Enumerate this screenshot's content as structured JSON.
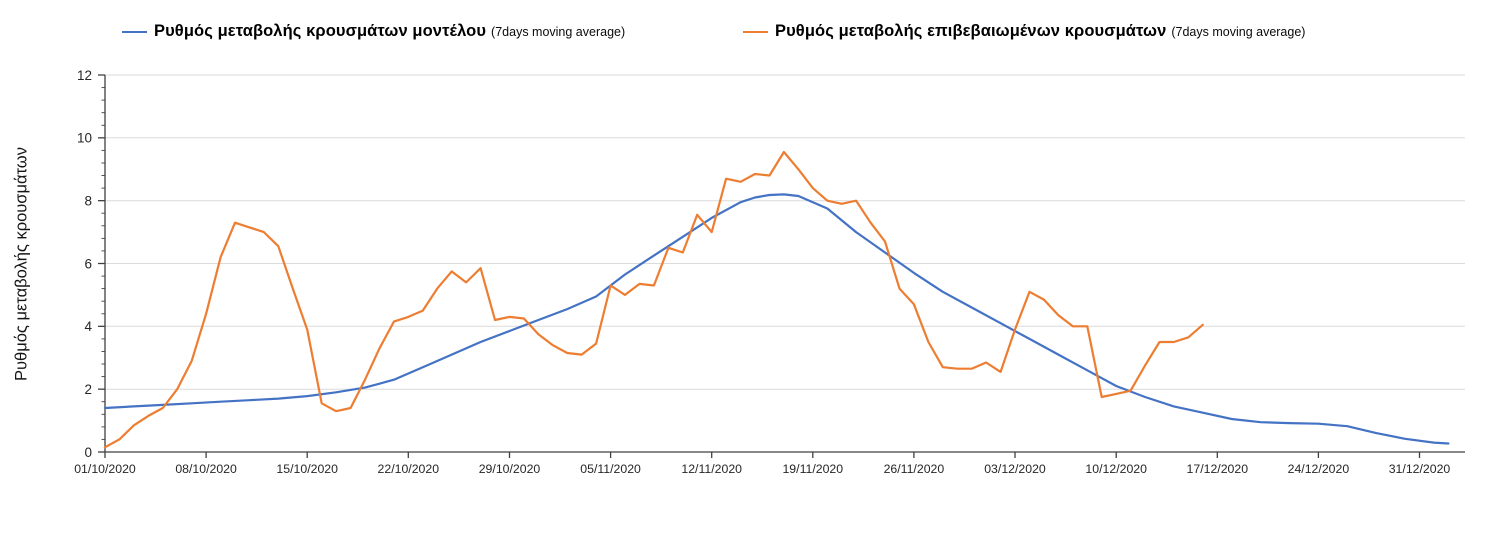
{
  "legend": {
    "items": [
      {
        "label": "Ρυθμός μεταβολής κρουσμάτων μοντέλου",
        "sub": "(7days moving average)",
        "series_key": "model"
      },
      {
        "label": "Ρυθμός μεταβολής επιβεβαιωμένων κρουσμάτων",
        "sub": "(7days moving average)",
        "series_key": "confirmed"
      }
    ]
  },
  "y_axis": {
    "title": "Ρυθμός μεταβολής κρουσμάτων",
    "tick_labels": [
      "0",
      "2",
      "4",
      "6",
      "8",
      "10",
      "12"
    ]
  },
  "colors": {
    "model": "#4472C4",
    "confirmed": "#ED7D31",
    "grid": "#DBDBDB",
    "axis": "#404040",
    "text": "#262626"
  },
  "chart_data": {
    "type": "line",
    "title": "",
    "xlabel": "",
    "ylabel": "Ρυθμός μεταβολής κρουσμάτων",
    "ylim": [
      0,
      12
    ],
    "y_tick_step": 2,
    "y_minor_step": 0.4,
    "grid": "horizontal",
    "legend_position": "top",
    "x_start_date": "01/10/2020",
    "x_unit": "day",
    "x_tick_every_days": 7,
    "x_tick_labels": [
      "01/10/2020",
      "08/10/2020",
      "15/10/2020",
      "22/10/2020",
      "29/10/2020",
      "05/11/2020",
      "12/11/2020",
      "19/11/2020",
      "26/11/2020",
      "03/12/2020",
      "10/12/2020",
      "17/12/2020",
      "24/12/2020",
      "31/12/2020"
    ],
    "series": [
      {
        "key": "model",
        "name": "Ρυθμός μεταβολής κρουσμάτων μοντέλου (7days moving average)",
        "color": "#4472C4",
        "days": [
          0,
          2,
          4,
          6,
          8,
          10,
          12,
          14,
          16,
          18,
          20,
          22,
          24,
          26,
          28,
          30,
          32,
          34,
          36,
          38,
          40,
          42,
          44,
          45,
          46,
          47,
          48,
          50,
          52,
          54,
          56,
          58,
          60,
          62,
          64,
          66,
          68,
          70,
          72,
          74,
          76,
          78,
          80,
          82,
          84,
          86,
          88,
          90,
          92,
          93
        ],
        "values": [
          1.4,
          1.45,
          1.5,
          1.55,
          1.6,
          1.65,
          1.7,
          1.78,
          1.9,
          2.05,
          2.3,
          2.7,
          3.1,
          3.5,
          3.85,
          4.2,
          4.55,
          4.95,
          5.65,
          6.25,
          6.85,
          7.45,
          7.95,
          8.1,
          8.18,
          8.2,
          8.15,
          7.75,
          7.0,
          6.35,
          5.7,
          5.1,
          4.6,
          4.1,
          3.6,
          3.1,
          2.6,
          2.1,
          1.75,
          1.45,
          1.25,
          1.05,
          0.95,
          0.92,
          0.9,
          0.82,
          0.6,
          0.42,
          0.3,
          0.27
        ]
      },
      {
        "key": "confirmed",
        "name": "Ρυθμός μεταβολής επιβεβαιωμένων κρουσμάτων (7days moving average)",
        "color": "#ED7D31",
        "values": [
          0.15,
          0.4,
          0.85,
          1.15,
          1.4,
          2.0,
          2.9,
          4.4,
          6.2,
          7.3,
          7.15,
          7.0,
          6.55,
          5.2,
          3.9,
          1.55,
          1.3,
          1.4,
          2.3,
          3.3,
          4.15,
          4.3,
          4.5,
          5.2,
          5.75,
          5.4,
          5.85,
          4.2,
          4.3,
          4.25,
          3.75,
          3.4,
          3.15,
          3.1,
          3.45,
          5.3,
          5.0,
          5.35,
          5.3,
          6.5,
          6.35,
          7.55,
          7.0,
          8.7,
          8.6,
          8.85,
          8.8,
          9.55,
          9.0,
          8.4,
          8.0,
          7.9,
          8.0,
          7.3,
          6.7,
          5.2,
          4.7,
          3.5,
          2.7,
          2.65,
          2.65,
          2.85,
          2.55,
          3.9,
          5.1,
          4.85,
          4.35,
          4.0,
          4.0,
          1.75,
          1.85,
          1.95,
          2.75,
          3.5,
          3.5,
          3.65,
          4.05
        ]
      }
    ]
  }
}
